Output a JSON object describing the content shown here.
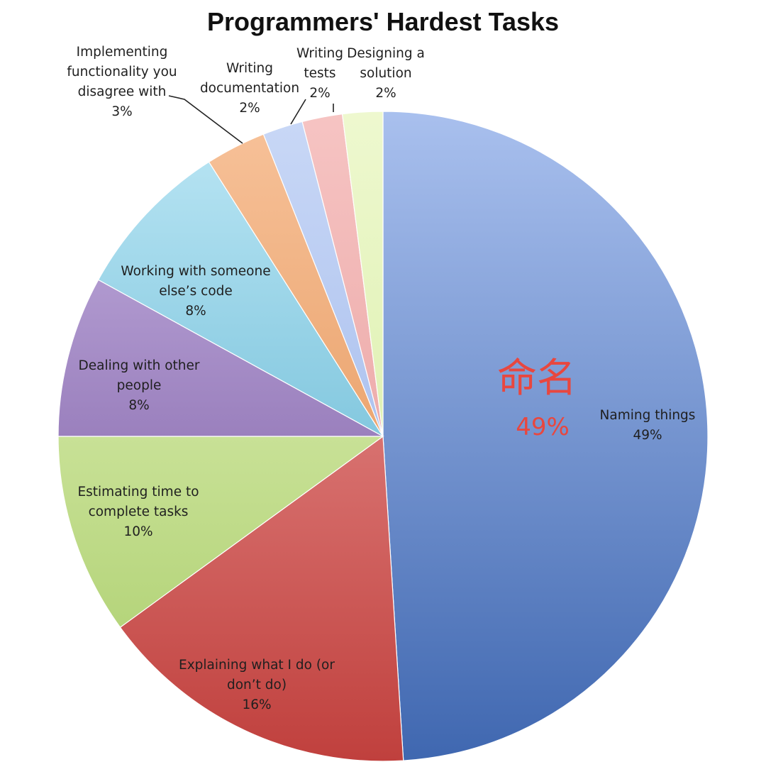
{
  "chart_data": {
    "type": "pie",
    "title": "Programmers' Hardest Tasks",
    "slices": [
      {
        "label": [
          "Naming things"
        ],
        "value_label": "49%",
        "value": 49,
        "color_light": "#a9c0ee",
        "color_dark": "#3f67b0"
      },
      {
        "label": [
          "Explaining what I do (or",
          "don’t do)"
        ],
        "value_label": "16%",
        "value": 16,
        "color_light": "#f0a3a2",
        "color_dark": "#c0403d"
      },
      {
        "label": [
          "Estimating time to",
          "complete tasks"
        ],
        "value_label": "10%",
        "value": 10,
        "color_light": "#e8f6c4",
        "color_dark": "#a8cc68"
      },
      {
        "label": [
          "Dealing with other",
          "people"
        ],
        "value_label": "8%",
        "value": 8,
        "color_light": "#c7b4e2",
        "color_dark": "#6e4c99"
      },
      {
        "label": [
          "Working with someone",
          "else’s code"
        ],
        "value_label": "8%",
        "value": 8,
        "color_light": "#bde7f5",
        "color_dark": "#4aa9c9"
      },
      {
        "label": [
          "Implementing",
          "functionality you",
          "disagree with"
        ],
        "value_label": "3%",
        "value": 3,
        "color_light": "#f7c29a",
        "color_dark": "#e08a48"
      },
      {
        "label": [
          "Writing",
          "documentation"
        ],
        "value_label": "2%",
        "value": 2,
        "color_light": "#c9d8f6",
        "color_dark": "#93aee8"
      },
      {
        "label": [
          "Writing",
          "tests"
        ],
        "value_label": "2%",
        "value": 2,
        "color_light": "#f6c4c3",
        "color_dark": "#e59594"
      },
      {
        "label": [
          "Designing a",
          "solution"
        ],
        "value_label": "2%",
        "value": 2,
        "color_light": "#eef8cf",
        "color_dark": "#d2eb9a"
      }
    ],
    "annotation": {
      "text": "命名",
      "value": "49%",
      "color": "#e8473f"
    }
  }
}
